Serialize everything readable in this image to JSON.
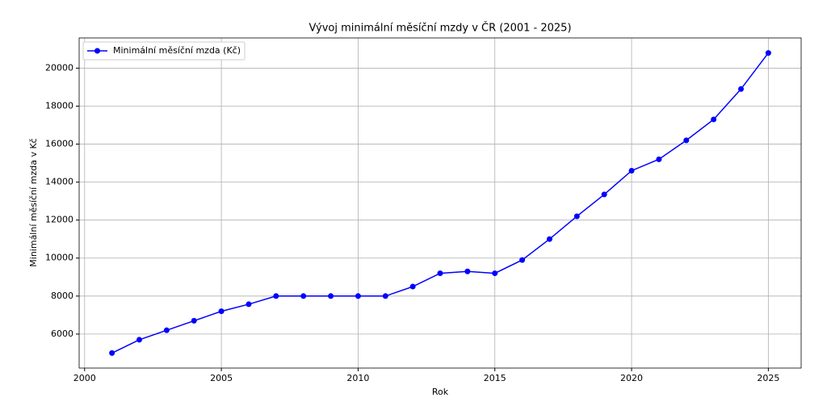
{
  "chart_data": {
    "type": "line",
    "title": "Vývoj minimální měsíční mzdy v ČR (2001 - 2025)",
    "xlabel": "Rok",
    "ylabel": "Minimální měsíční mzda v Kč",
    "x": [
      2001,
      2002,
      2003,
      2004,
      2005,
      2006,
      2007,
      2008,
      2009,
      2010,
      2011,
      2012,
      2013,
      2014,
      2015,
      2016,
      2017,
      2018,
      2019,
      2020,
      2021,
      2022,
      2023,
      2024,
      2025
    ],
    "series": [
      {
        "name": "Minimální měsíční mzda (Kč)",
        "color": "blue",
        "values": [
          5000,
          5700,
          6200,
          6700,
          7200,
          7570,
          8000,
          8000,
          8000,
          8000,
          8000,
          8500,
          9200,
          9300,
          9200,
          9900,
          11000,
          12200,
          13350,
          14600,
          15200,
          16200,
          17300,
          18900,
          20800
        ]
      }
    ],
    "xlim": [
      1999.8,
      2026.2
    ],
    "xticks": [
      2000,
      2005,
      2010,
      2015,
      2020,
      2025
    ],
    "ylim": [
      4210,
      21590
    ],
    "yticks": [
      6000,
      8000,
      10000,
      12000,
      14000,
      16000,
      18000,
      20000
    ],
    "grid": true,
    "legend": "upper left"
  }
}
